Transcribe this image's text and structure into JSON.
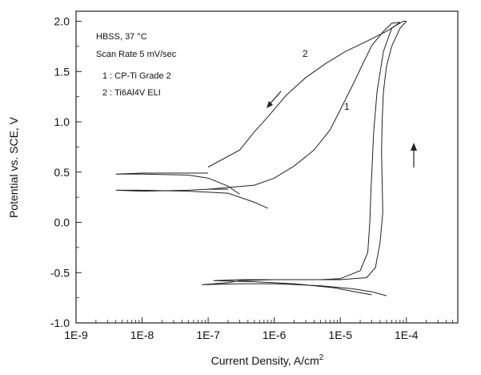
{
  "chart_data": {
    "type": "line",
    "xlabel": "Current Density, A/cm",
    "xlabel_sup": "2",
    "ylabel": "Potential vs. SCE, V",
    "x_scale": "log",
    "xlim": [
      1e-09,
      0.0006
    ],
    "ylim": [
      -1.0,
      2.1
    ],
    "x_ticks": [
      "1E-9",
      "1E-8",
      "1E-7",
      "1E-6",
      "1E-5",
      "1E-4"
    ],
    "y_ticks": [
      "-1.0",
      "-0.5",
      "0.0",
      "0.5",
      "1.0",
      "1.5",
      "2.0"
    ],
    "annotations": {
      "condition": "HBSS, 37 °C",
      "scan_rate": "Scan Rate 5 mV/sec",
      "legend_1": "1 : CP-Ti Grade 2",
      "legend_2": "2 : Ti6Al4V ELI"
    },
    "series": [
      {
        "name": "1",
        "label": "1",
        "segments": [
          {
            "x": [
              2e-07,
              1e-07,
              5e-08,
              1e-08,
              4e-09,
              1e-08,
              5e-08,
              2e-07,
              5e-07,
              8e-07
            ],
            "y": [
              0.33,
              0.33,
              0.32,
              0.31,
              0.32,
              0.32,
              0.31,
              0.29,
              0.2,
              0.14
            ]
          },
          {
            "x": [
              1e-07,
              5e-07,
              1e-06,
              2e-06,
              4e-06,
              7e-06,
              1e-05,
              1.5e-05,
              2.2e-05,
              3e-05,
              4.5e-05,
              6e-05,
              8e-05
            ],
            "y": [
              0.33,
              0.37,
              0.44,
              0.56,
              0.72,
              0.92,
              1.12,
              1.35,
              1.58,
              1.76,
              1.9,
              1.98,
              1.99
            ]
          },
          {
            "x": [
              8e-05,
              6e-05,
              4.5e-05,
              3.6e-05,
              3.2e-05,
              3e-05,
              2.9e-05,
              2.8e-05,
              2.6e-05,
              2e-05,
              1e-05,
              5e-06,
              2e-06
            ],
            "y": [
              1.99,
              1.93,
              1.7,
              1.3,
              0.9,
              0.5,
              0.3,
              0.0,
              -0.3,
              -0.48,
              -0.56,
              -0.57,
              -0.57
            ]
          },
          {
            "x": [
              2e-06,
              1e-06,
              5e-07,
              3e-07,
              1.2e-07,
              5e-07,
              2e-06,
              8e-06,
              2e-05,
              3e-05
            ],
            "y": [
              -0.57,
              -0.57,
              -0.57,
              -0.57,
              -0.58,
              -0.59,
              -0.61,
              -0.65,
              -0.7,
              -0.72
            ]
          }
        ]
      },
      {
        "name": "2",
        "label": "2",
        "segments": [
          {
            "x": [
              1e-07,
              5e-08,
              1e-08,
              4e-09,
              1e-08,
              5e-08,
              1e-07,
              2e-07,
              3e-07
            ],
            "y": [
              0.49,
              0.49,
              0.49,
              0.48,
              0.48,
              0.47,
              0.44,
              0.36,
              0.28
            ]
          },
          {
            "x": [
              1e-07,
              3e-07,
              5e-07,
              8e-07,
              1.5e-06,
              3e-06,
              6e-06,
              1.2e-05,
              2.5e-05,
              5e-05,
              7e-05,
              9e-05,
              0.0001
            ],
            "y": [
              0.55,
              0.72,
              0.9,
              1.05,
              1.26,
              1.44,
              1.58,
              1.7,
              1.8,
              1.9,
              1.96,
              2.0,
              2.0
            ]
          },
          {
            "x": [
              0.0001,
              8e-05,
              6e-05,
              5e-05,
              4.5e-05,
              4.3e-05,
              4.2e-05,
              4.3e-05,
              4.4e-05,
              4e-05,
              3.4e-05,
              2.5e-05,
              1e-05,
              5e-06,
              1e-06
            ],
            "y": [
              2.0,
              1.93,
              1.75,
              1.55,
              1.3,
              1.0,
              0.7,
              0.4,
              0.1,
              -0.2,
              -0.45,
              -0.55,
              -0.57,
              -0.57,
              -0.57
            ]
          },
          {
            "x": [
              1e-06,
              3e-07,
              2e-07,
              8e-08,
              3e-07,
              1e-06,
              5e-06,
              1.5e-05,
              3e-05,
              5e-05
            ],
            "y": [
              -0.57,
              -0.58,
              -0.6,
              -0.62,
              -0.61,
              -0.61,
              -0.63,
              -0.66,
              -0.69,
              -0.73
            ]
          }
        ]
      }
    ]
  }
}
